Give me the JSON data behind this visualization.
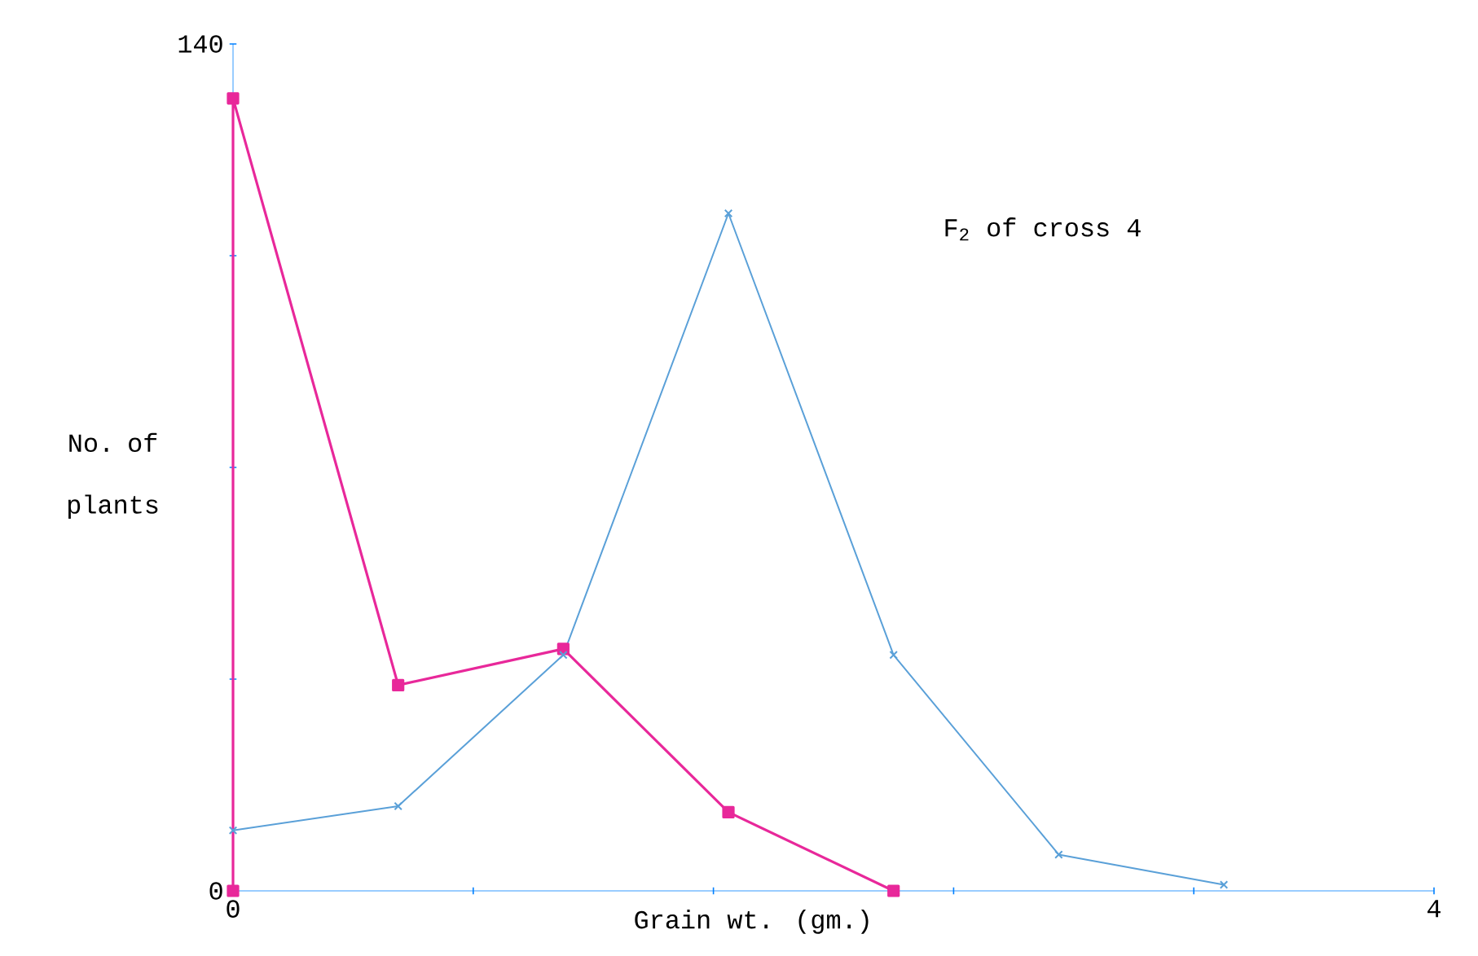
{
  "chart_data": {
    "type": "line",
    "title": "F$_{2}$ of cross 4",
    "xlabel": "Grain wt. (gm.)",
    "ylabel": "No. of plants",
    "xlim": [
      0,
      4
    ],
    "ylim": [
      0,
      140
    ],
    "xticks": [
      0,
      {
        "value": 0.8,
        "label": null
      },
      {
        "value": 1.6,
        "label": null
      },
      {
        "value": 2.4,
        "label": null
      },
      {
        "value": 3.2,
        "label": null
      },
      4
    ],
    "yticks": [
      0,
      {
        "value": 35,
        "label": null
      },
      {
        "value": 70,
        "label": null
      },
      {
        "value": 105,
        "label": null
      },
      140
    ],
    "grid": false,
    "line_style": "solid",
    "series": [
      {
        "color": "#5aa0d8",
        "marker": "cross",
        "x": [
          0,
          0.55,
          1.1,
          1.65,
          2.2,
          2.75,
          3.3
        ],
        "values": [
          10,
          14,
          39,
          112,
          39,
          6,
          1
        ]
      },
      {
        "color": "#e8289a",
        "marker": "square",
        "x": [
          0,
          0,
          0.55,
          1.1,
          1.65,
          2.2
        ],
        "values": [
          0,
          131,
          34,
          40,
          13,
          0
        ]
      }
    ]
  }
}
